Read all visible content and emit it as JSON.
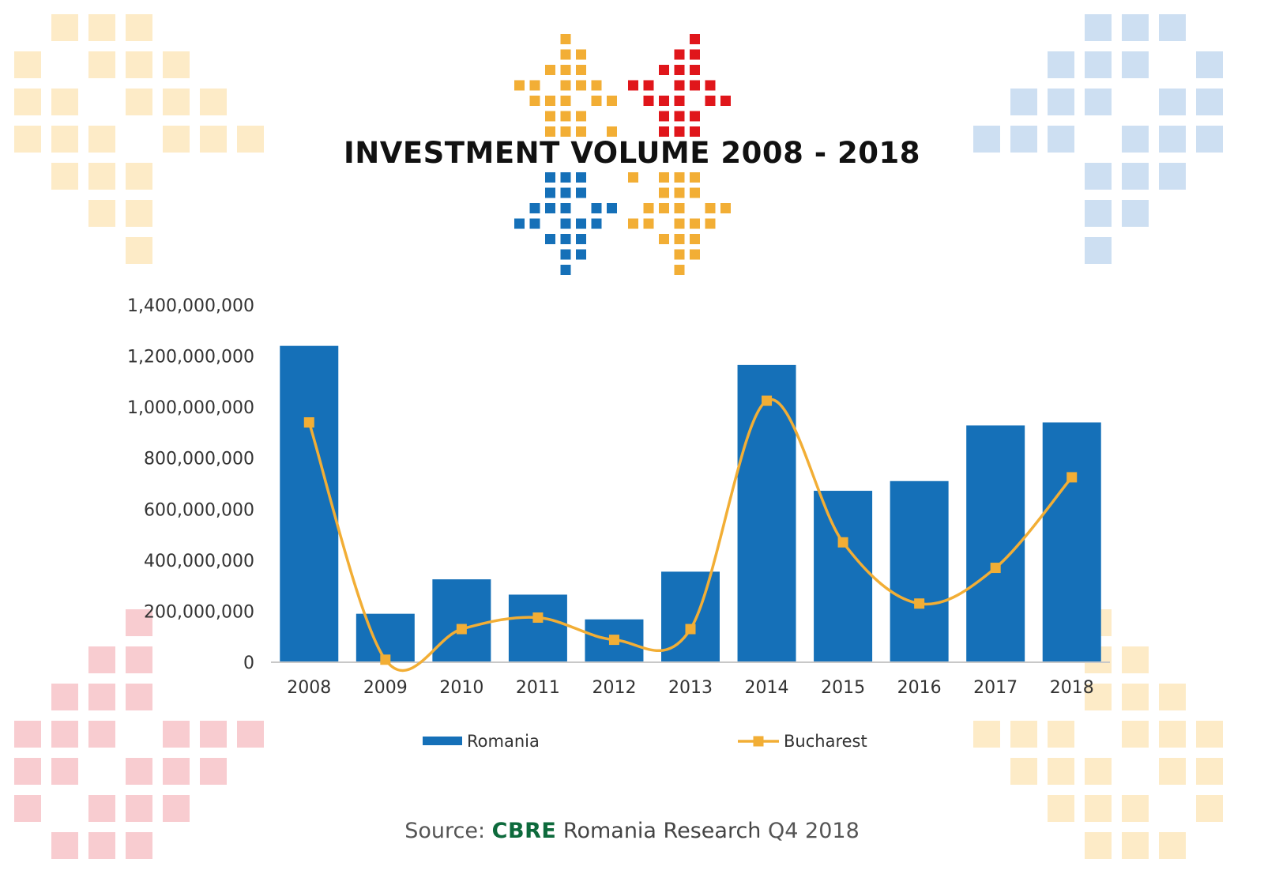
{
  "title": "INVESTMENT VOLUME 2008 - 2018",
  "source": {
    "label": "Source:",
    "brand": "CBRE",
    "publisher": "Romania Research",
    "period": "Q4 2018"
  },
  "colors": {
    "bar": "#1570b8",
    "line": "#f2ae35",
    "logo_orange": "#f2ae35",
    "logo_red": "#e0161b",
    "logo_blue": "#1570b8",
    "brand_green": "#0d6a3c",
    "deco_orange": "#fdebc7",
    "deco_blue": "#cddff2",
    "deco_red": "#f8ccd0"
  },
  "chart_data": {
    "type": "bar",
    "categories": [
      "2008",
      "2009",
      "2010",
      "2011",
      "2012",
      "2013",
      "2014",
      "2015",
      "2016",
      "2017",
      "2018"
    ],
    "series": [
      {
        "name": "Romania",
        "type": "bar",
        "values": [
          1240000000,
          190000000,
          325000000,
          265000000,
          168000000,
          355000000,
          1165000000,
          672000000,
          710000000,
          928000000,
          940000000
        ]
      },
      {
        "name": "Bucharest",
        "type": "line",
        "smooth": true,
        "marker": "square",
        "values": [
          940000000,
          10000000,
          130000000,
          175000000,
          88000000,
          130000000,
          1025000000,
          470000000,
          230000000,
          370000000,
          725000000
        ]
      }
    ],
    "ylim": [
      0,
      1400000000
    ],
    "yticks": [
      0,
      200000000,
      400000000,
      600000000,
      800000000,
      1000000000,
      1200000000,
      1400000000
    ],
    "ytick_labels": [
      "0",
      "200,000,000",
      "400,000,000",
      "600,000,000",
      "800,000,000",
      "1,000,000,000",
      "1,200,000,000",
      "1,400,000,000"
    ],
    "grid": false,
    "legend": "bottom"
  }
}
